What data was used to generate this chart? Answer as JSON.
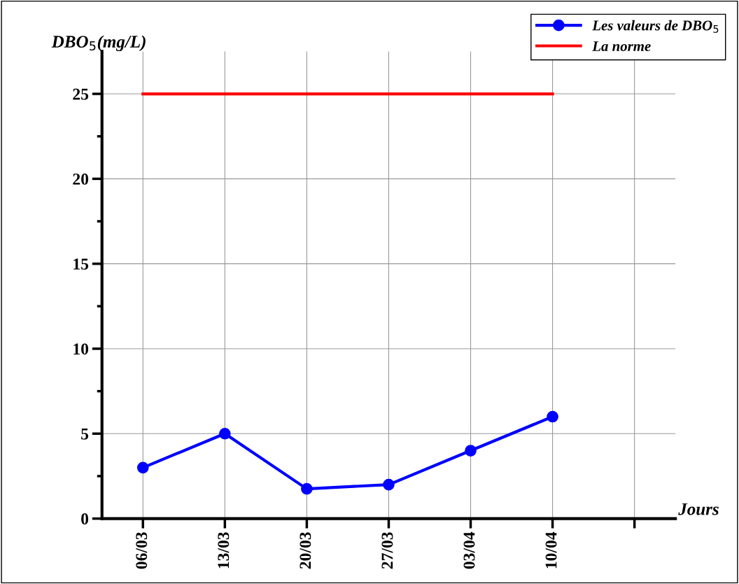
{
  "chart_data": {
    "type": "line",
    "categories": [
      "06/03",
      "13/03",
      "20/03",
      "27/03",
      "03/04",
      "10/04",
      null
    ],
    "series": [
      {
        "name": "Les valeurs de DBO$_{5}$",
        "color": "#0000ff",
        "values": [
          3,
          5,
          1.75,
          2,
          4,
          6,
          null
        ],
        "marker": "circle"
      },
      {
        "name": "La norme",
        "color": "#ff0000",
        "values": [
          25,
          25,
          25,
          25,
          25,
          25,
          null
        ],
        "marker": "none"
      }
    ],
    "ylabel": "DBO$_{5}$(mg/L)",
    "xlabel": "Jours",
    "ylim": [
      0,
      27.5
    ],
    "yticks": [
      0,
      5,
      10,
      15,
      20,
      25
    ],
    "grid": true,
    "legend": "top right",
    "line_style": "solid"
  }
}
